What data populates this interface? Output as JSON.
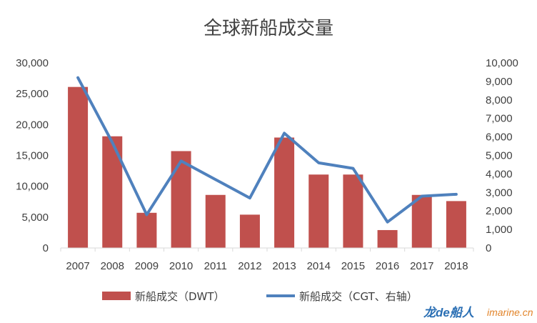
{
  "chart_data": {
    "type": "bar",
    "title": "全球新船成交量",
    "categories": [
      "2007",
      "2008",
      "2009",
      "2010",
      "2011",
      "2012",
      "2013",
      "2014",
      "2015",
      "2016",
      "2017",
      "2018"
    ],
    "series": [
      {
        "name": "新船成交（DWT）",
        "type": "bar",
        "axis": "left",
        "color": "#c0504d",
        "values": [
          26100,
          18100,
          5700,
          15700,
          8600,
          5400,
          17900,
          11900,
          11900,
          2900,
          8600,
          7600
        ]
      },
      {
        "name": "新船成交（CGT、右轴）",
        "type": "line",
        "axis": "right",
        "color": "#4f81bd",
        "values": [
          9200,
          5700,
          1800,
          4700,
          3700,
          2700,
          6200,
          4600,
          4300,
          1400,
          2800,
          2900
        ]
      }
    ],
    "y_left": {
      "min": 0,
      "max": 30000,
      "step": 5000,
      "tick_labels": [
        "0",
        "5,000",
        "10,000",
        "15,000",
        "20,000",
        "25,000",
        "30,000"
      ]
    },
    "y_right": {
      "min": 0,
      "max": 10000,
      "step": 1000,
      "tick_labels": [
        "0",
        "1,000",
        "2,000",
        "3,000",
        "4,000",
        "5,000",
        "6,000",
        "7,000",
        "8,000",
        "9,000",
        "10,000"
      ]
    },
    "grid": false,
    "legend": "bottom"
  },
  "watermark": {
    "brand": "龙de船人",
    "url": "imarine.cn"
  }
}
